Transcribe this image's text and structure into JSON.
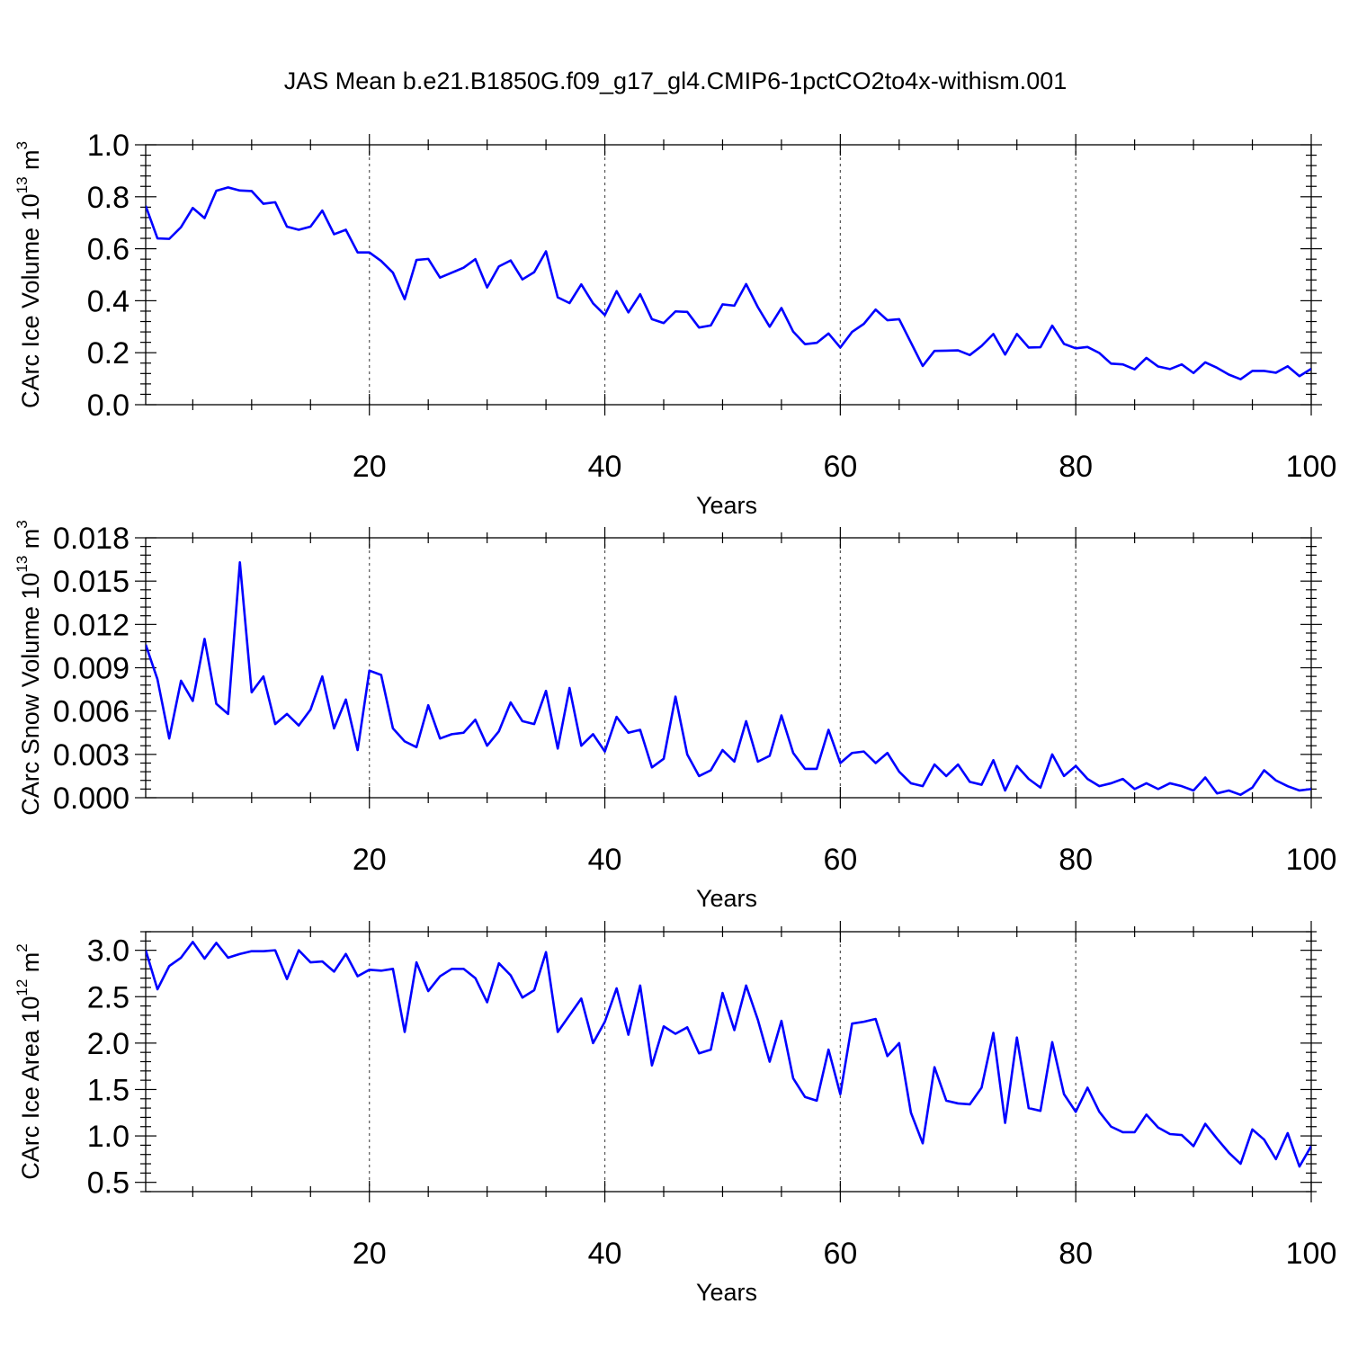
{
  "figure_title": "JAS Mean b.e21.B1850G.f09_g17_gl4.CMIP6-1pctCO2to4x-withism.001",
  "colors": {
    "series": "#0000ff",
    "axes": "#000000",
    "grid": "#555555"
  },
  "chart_data": [
    {
      "type": "line",
      "ylabel": {
        "base": "CArc Ice Volume 10",
        "exp": "13",
        "unit": " m",
        "unit_exp": "3"
      },
      "xlabel": "Years",
      "xlim": [
        1,
        100
      ],
      "ylim": [
        0.0,
        1.0
      ],
      "xticks": [
        20,
        40,
        60,
        80,
        100
      ],
      "yticks": [
        0.0,
        0.2,
        0.4,
        0.6,
        0.8,
        1.0
      ],
      "ytick_labels": [
        "0.0",
        "0.2",
        "0.4",
        "0.6",
        "0.8",
        "1.0"
      ],
      "grid": "vertical dashed at x ticks",
      "x_start": 1,
      "values": [
        0.765,
        0.64,
        0.638,
        0.683,
        0.757,
        0.718,
        0.823,
        0.836,
        0.824,
        0.822,
        0.773,
        0.779,
        0.685,
        0.673,
        0.685,
        0.747,
        0.656,
        0.673,
        0.586,
        0.586,
        0.553,
        0.508,
        0.406,
        0.557,
        0.561,
        0.489,
        0.508,
        0.527,
        0.56,
        0.451,
        0.532,
        0.555,
        0.482,
        0.51,
        0.59,
        0.413,
        0.391,
        0.463,
        0.39,
        0.345,
        0.437,
        0.355,
        0.425,
        0.329,
        0.314,
        0.359,
        0.357,
        0.297,
        0.305,
        0.386,
        0.381,
        0.464,
        0.375,
        0.3,
        0.372,
        0.281,
        0.233,
        0.238,
        0.274,
        0.22,
        0.28,
        0.311,
        0.366,
        0.325,
        0.329,
        0.239,
        0.149,
        0.207,
        0.208,
        0.209,
        0.191,
        0.226,
        0.272,
        0.193,
        0.272,
        0.22,
        0.221,
        0.304,
        0.234,
        0.217,
        0.222,
        0.199,
        0.158,
        0.155,
        0.136,
        0.18,
        0.147,
        0.137,
        0.155,
        0.122,
        0.163,
        0.142,
        0.116,
        0.098,
        0.13,
        0.13,
        0.123,
        0.148,
        0.11,
        0.138
      ]
    },
    {
      "type": "line",
      "ylabel": {
        "base": "CArc Snow Volume 10",
        "exp": "13",
        "unit": " m",
        "unit_exp": "3"
      },
      "xlabel": "Years",
      "xlim": [
        1,
        100
      ],
      "ylim": [
        0.0,
        0.018
      ],
      "xticks": [
        20,
        40,
        60,
        80,
        100
      ],
      "yticks": [
        0.0,
        0.003,
        0.006,
        0.009,
        0.012,
        0.015,
        0.018
      ],
      "ytick_labels": [
        "0.000",
        "0.003",
        "0.006",
        "0.009",
        "0.012",
        "0.015",
        "0.018"
      ],
      "grid": "vertical dashed at x ticks",
      "x_start": 1,
      "values": [
        0.0106,
        0.0082,
        0.0041,
        0.0081,
        0.0067,
        0.011,
        0.0065,
        0.0058,
        0.0163,
        0.0073,
        0.0084,
        0.0051,
        0.0058,
        0.005,
        0.0061,
        0.0084,
        0.0048,
        0.0068,
        0.0033,
        0.0088,
        0.0085,
        0.0048,
        0.0039,
        0.0035,
        0.0064,
        0.0041,
        0.0044,
        0.0045,
        0.0054,
        0.0036,
        0.0046,
        0.0066,
        0.0053,
        0.0051,
        0.0074,
        0.0034,
        0.0076,
        0.0036,
        0.0044,
        0.0032,
        0.0056,
        0.0045,
        0.0047,
        0.0021,
        0.0027,
        0.007,
        0.003,
        0.0015,
        0.0019,
        0.0033,
        0.0025,
        0.0053,
        0.0025,
        0.0029,
        0.0057,
        0.0031,
        0.002,
        0.002,
        0.0047,
        0.0024,
        0.0031,
        0.0032,
        0.0024,
        0.0031,
        0.0018,
        0.001,
        0.0008,
        0.0023,
        0.0015,
        0.0023,
        0.0011,
        0.0009,
        0.0026,
        0.0005,
        0.0022,
        0.0013,
        0.0007,
        0.003,
        0.0015,
        0.0022,
        0.0013,
        0.0008,
        0.001,
        0.0013,
        0.0006,
        0.001,
        0.0006,
        0.001,
        0.0008,
        0.0005,
        0.0014,
        0.0003,
        0.0005,
        0.0002,
        0.0007,
        0.0019,
        0.0012,
        0.0008,
        0.0005,
        0.0006
      ]
    },
    {
      "type": "line",
      "ylabel": {
        "base": "CArc Ice Area 10",
        "exp": "12",
        "unit": " m",
        "unit_exp": "2"
      },
      "xlabel": "Years",
      "xlim": [
        1,
        100
      ],
      "ylim": [
        0.4,
        3.2
      ],
      "xticks": [
        20,
        40,
        60,
        80,
        100
      ],
      "yticks": [
        0.5,
        1.0,
        1.5,
        2.0,
        2.5,
        3.0
      ],
      "ytick_labels": [
        "0.5",
        "1.0",
        "1.5",
        "2.0",
        "2.5",
        "3.0"
      ],
      "grid": "vertical dashed at x ticks",
      "x_start": 1,
      "values": [
        3.0,
        2.58,
        2.83,
        2.92,
        3.09,
        2.91,
        3.08,
        2.92,
        2.96,
        2.99,
        2.99,
        3.0,
        2.69,
        3.0,
        2.87,
        2.88,
        2.77,
        2.96,
        2.72,
        2.79,
        2.78,
        2.8,
        2.12,
        2.87,
        2.56,
        2.72,
        2.8,
        2.8,
        2.7,
        2.44,
        2.86,
        2.73,
        2.49,
        2.57,
        2.98,
        2.12,
        2.3,
        2.48,
        2.0,
        2.23,
        2.59,
        2.09,
        2.62,
        1.76,
        2.18,
        2.1,
        2.17,
        1.89,
        1.93,
        2.54,
        2.14,
        2.62,
        2.25,
        1.8,
        2.24,
        1.62,
        1.42,
        1.38,
        1.93,
        1.45,
        2.21,
        2.23,
        2.26,
        1.86,
        2.0,
        1.25,
        0.92,
        1.74,
        1.38,
        1.35,
        1.34,
        1.52,
        2.11,
        1.14,
        2.06,
        1.3,
        1.27,
        2.01,
        1.45,
        1.26,
        1.52,
        1.26,
        1.1,
        1.04,
        1.04,
        1.23,
        1.09,
        1.02,
        1.01,
        0.89,
        1.13,
        0.97,
        0.82,
        0.7,
        1.07,
        0.96,
        0.75,
        1.03,
        0.67,
        0.89
      ]
    }
  ]
}
